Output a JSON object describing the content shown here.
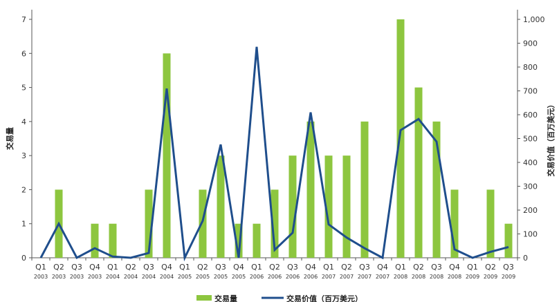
{
  "chart_data": {
    "type": "bar",
    "categories": [
      [
        "Q1",
        "2003"
      ],
      [
        "Q2",
        "2003"
      ],
      [
        "Q3",
        "2003"
      ],
      [
        "Q4",
        "2003"
      ],
      [
        "Q1",
        "2004"
      ],
      [
        "Q2",
        "2004"
      ],
      [
        "Q3",
        "2004"
      ],
      [
        "Q4",
        "2004"
      ],
      [
        "Q1",
        "2005"
      ],
      [
        "Q2",
        "2005"
      ],
      [
        "Q3",
        "2005"
      ],
      [
        "Q4",
        "2005"
      ],
      [
        "Q1",
        "2006"
      ],
      [
        "Q2",
        "2006"
      ],
      [
        "Q3",
        "2006"
      ],
      [
        "Q4",
        "2006"
      ],
      [
        "Q1",
        "2007"
      ],
      [
        "Q2",
        "2007"
      ],
      [
        "Q3",
        "2007"
      ],
      [
        "Q4",
        "2007"
      ],
      [
        "Q1",
        "2008"
      ],
      [
        "Q2",
        "2008"
      ],
      [
        "Q3",
        "2008"
      ],
      [
        "Q4",
        "2008"
      ],
      [
        "Q1",
        "2009"
      ],
      [
        "Q2",
        "2009"
      ],
      [
        "Q3",
        "2009"
      ]
    ],
    "series": [
      {
        "name": "交易量",
        "type": "bar",
        "axis": "left",
        "color": "#8dc63f",
        "values": [
          0,
          2,
          0,
          1,
          1,
          0,
          2,
          6,
          0,
          2,
          3,
          1,
          1,
          2,
          3,
          4,
          3,
          3,
          4,
          0,
          7,
          5,
          4,
          2,
          0,
          2,
          1
        ]
      },
      {
        "name": "交易价值（百万美元）",
        "type": "line",
        "axis": "right",
        "color": "#1f4e8c",
        "values": [
          0,
          143,
          0,
          40,
          5,
          0,
          20,
          710,
          0,
          155,
          475,
          0,
          885,
          33,
          105,
          610,
          140,
          85,
          40,
          0,
          535,
          582,
          487,
          35,
          0,
          25,
          45
        ]
      }
    ],
    "ylabel": "交易量",
    "ylabel_right": "交易价值（百万美元）",
    "ylim": [
      0,
      7
    ],
    "ylim_right": [
      0,
      1000
    ],
    "yticks": [
      0,
      1,
      2,
      3,
      4,
      5,
      6,
      7
    ],
    "yticks_right": [
      {
        "value": 0,
        "label": "0"
      },
      {
        "value": 100,
        "label": "100"
      },
      {
        "value": 200,
        "label": "200"
      },
      {
        "value": 300,
        "label": "300"
      },
      {
        "value": 400,
        "label": "400"
      },
      {
        "value": 500,
        "label": "500"
      },
      {
        "value": 600,
        "label": "600"
      },
      {
        "value": 700,
        "label": "700"
      },
      {
        "value": 800,
        "label": "800"
      },
      {
        "value": 900,
        "label": "900"
      },
      {
        "value": 1000,
        "label": "1,000"
      }
    ],
    "grid": false,
    "legend_position": "bottom"
  }
}
